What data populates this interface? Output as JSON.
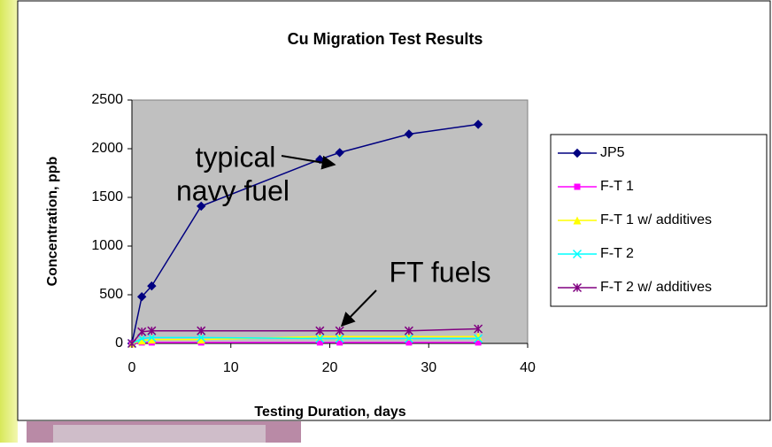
{
  "chart_data": {
    "type": "line",
    "title": "Cu Migration Test Results",
    "x_label": "Testing Duration, days",
    "y_label": "Concentration, ppb",
    "x": [
      0,
      1,
      2,
      7,
      19,
      21,
      28,
      35
    ],
    "series": [
      {
        "name": "JP5",
        "color": "#000080",
        "marker": "diamond",
        "values": [
          0,
          480,
          590,
          1410,
          1890,
          1960,
          2150,
          2250
        ]
      },
      {
        "name": "F-T 1",
        "color": "#ff00ff",
        "marker": "square",
        "values": [
          0,
          10,
          10,
          10,
          10,
          10,
          10,
          10
        ]
      },
      {
        "name": "F-T 1 w/ additives",
        "color": "#ffff00",
        "marker": "triangle",
        "values": [
          0,
          30,
          40,
          40,
          70,
          70,
          70,
          70
        ]
      },
      {
        "name": "F-T 2",
        "color": "#00ffff",
        "marker": "x",
        "values": [
          0,
          50,
          60,
          60,
          50,
          50,
          50,
          50
        ]
      },
      {
        "name": "F-T 2 w/ additives",
        "color": "#800080",
        "marker": "asterisk",
        "values": [
          0,
          120,
          130,
          130,
          130,
          130,
          130,
          150
        ]
      }
    ],
    "xlim": [
      0,
      40
    ],
    "xticks": [
      0,
      10,
      20,
      30,
      40
    ],
    "ylim": [
      0,
      2500
    ],
    "yticks": [
      0,
      500,
      1000,
      1500,
      2000,
      2500
    ],
    "grid": false,
    "plot_background": "#c0c0c0",
    "legend": "right",
    "annotations": [
      {
        "lines": [
          "typical",
          "navy fuel"
        ]
      },
      {
        "lines": [
          "FT fuels"
        ]
      }
    ]
  }
}
